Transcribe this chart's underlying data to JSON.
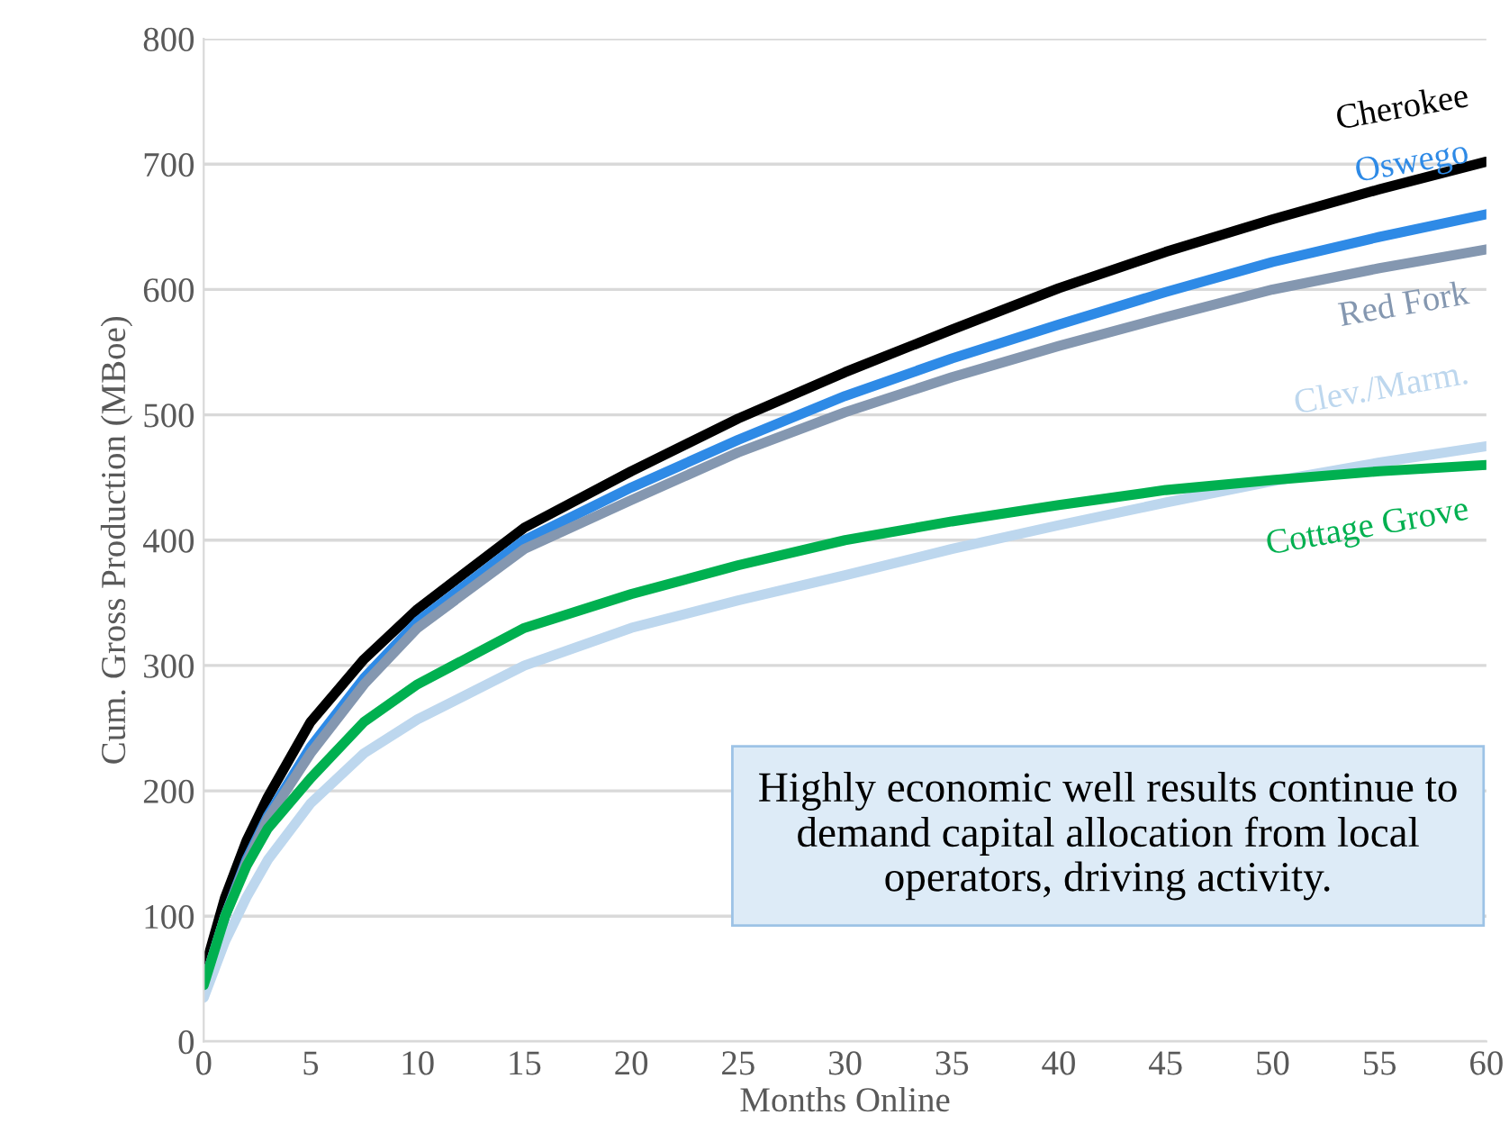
{
  "chart_data": {
    "type": "line",
    "xlabel": "Months Online",
    "ylabel": "Cum. Gross Production (MBoe)",
    "x": [
      0,
      1,
      2,
      3,
      5,
      7.5,
      10,
      15,
      20,
      25,
      30,
      35,
      40,
      45,
      50,
      55,
      60
    ],
    "series": [
      {
        "name": "Cherokee",
        "color": "#000000",
        "values": [
          55,
          115,
          160,
          195,
          255,
          305,
          345,
          410,
          455,
          497,
          534,
          568,
          601,
          630,
          656,
          680,
          702
        ]
      },
      {
        "name": "Oswego",
        "color": "#2e8ae6",
        "values": [
          45,
          100,
          145,
          180,
          235,
          290,
          335,
          400,
          442,
          480,
          515,
          545,
          572,
          598,
          622,
          642,
          660
        ]
      },
      {
        "name": "Red Fork",
        "color": "#8497b0",
        "values": [
          45,
          100,
          143,
          178,
          230,
          285,
          330,
          393,
          432,
          470,
          502,
          530,
          555,
          578,
          600,
          617,
          632
        ]
      },
      {
        "name": "Clev./Marm.",
        "color": "#bdd7ee",
        "values": [
          35,
          80,
          115,
          145,
          190,
          230,
          257,
          300,
          330,
          352,
          372,
          393,
          412,
          430,
          447,
          462,
          475
        ]
      },
      {
        "name": "Cottage Grove",
        "color": "#00b050",
        "values": [
          45,
          100,
          140,
          170,
          210,
          255,
          285,
          330,
          357,
          380,
          400,
          415,
          428,
          440,
          448,
          455,
          460
        ]
      }
    ],
    "xlim": [
      0,
      60
    ],
    "xticks": [
      0,
      5,
      10,
      15,
      20,
      25,
      30,
      35,
      40,
      45,
      50,
      55,
      60
    ],
    "ylim": [
      0,
      800
    ],
    "yticks": [
      0,
      100,
      200,
      300,
      400,
      500,
      600,
      700,
      800
    ],
    "grid": "y",
    "legend": false,
    "marker": "none",
    "line_style": "solid",
    "annotations": [
      "Highly economic well results continue to demand capital allocation from local operators, driving activity."
    ]
  }
}
